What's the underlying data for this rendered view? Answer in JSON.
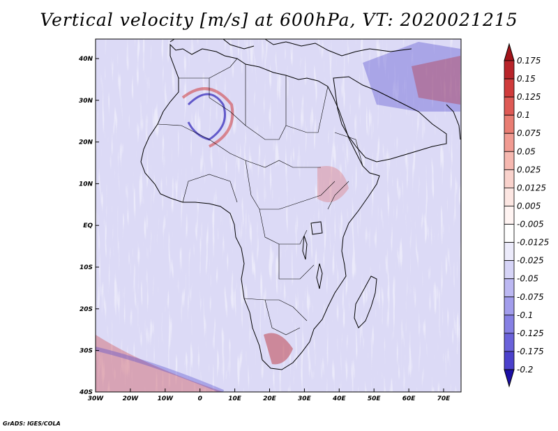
{
  "title": "Vertical velocity [m/s] at 600hPa, VT: 2020021215",
  "credit": "GrADS: IGES/COLA",
  "lat_labels": [
    "40N",
    "30N",
    "20N",
    "10N",
    "EQ",
    "10S",
    "20S",
    "30S",
    "40S"
  ],
  "lon_labels": [
    "30W",
    "20W",
    "10W",
    "0",
    "10E",
    "20E",
    "30E",
    "40E",
    "50E",
    "60E",
    "70E"
  ],
  "colorbar": {
    "levels": [
      {
        "label": "0.175",
        "color": "#b8242a"
      },
      {
        "label": "0.15",
        "color": "#cf3b3b"
      },
      {
        "label": "0.125",
        "color": "#de5a55"
      },
      {
        "label": "0.1",
        "color": "#e97d73"
      },
      {
        "label": "0.075",
        "color": "#f19b92"
      },
      {
        "label": "0.05",
        "color": "#f6b8b0"
      },
      {
        "label": "0.025",
        "color": "#f9d2cc"
      },
      {
        "label": "0.0125",
        "color": "#fce6e2"
      },
      {
        "label": "0.005",
        "color": "#fff4f2"
      },
      {
        "label": "-0.005",
        "color": "#ffffff"
      },
      {
        "label": "-0.0125",
        "color": "#ecebfb"
      },
      {
        "label": "-0.025",
        "color": "#d6d4f7"
      },
      {
        "label": "-0.05",
        "color": "#bcb8f2"
      },
      {
        "label": "-0.075",
        "color": "#a29dec"
      },
      {
        "label": "-0.1",
        "color": "#8680e4"
      },
      {
        "label": "-0.125",
        "color": "#6a62da"
      },
      {
        "label": "-0.175",
        "color": "#4b41cc"
      },
      {
        "label": "-0.2",
        "color": "#2e22b8"
      }
    ],
    "top_arrow_color": "#a3141a",
    "bottom_arrow_color": "#1c0fa6"
  },
  "colors": {
    "positive": "#e66f6a",
    "negative": "#7b72e8",
    "strong_positive": "#b8242a",
    "strong_negative": "#2e22b8",
    "coastline": "#000000"
  }
}
